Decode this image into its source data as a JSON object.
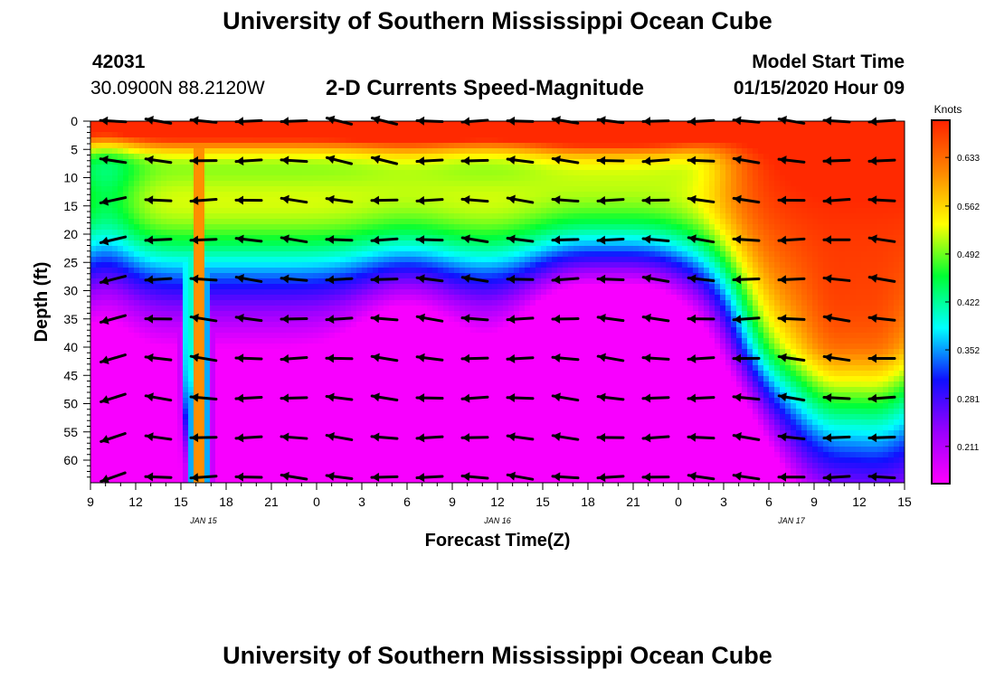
{
  "header": {
    "title_top": "University of Southern Mississippi Ocean Cube",
    "title_bottom": "University of Southern Mississippi Ocean Cube",
    "station_id": "42031",
    "station_coords": "30.0900N 88.2120W",
    "plot_title": "2-D Currents Speed-Magnitude",
    "model_start_label": "Model Start Time",
    "model_start_value": "01/15/2020 Hour 09"
  },
  "chart_data": {
    "type": "heatmap",
    "title": "2-D Currents Speed-Magnitude",
    "xlabel": "Forecast Time(Z)",
    "ylabel": "Depth (ft)",
    "x_tick_labels": [
      "9",
      "12",
      "15",
      "18",
      "21",
      "0",
      "3",
      "6",
      "9",
      "12",
      "15",
      "18",
      "21",
      "0",
      "3",
      "6",
      "9",
      "12",
      "15"
    ],
    "x_hours_from_start": [
      0,
      3,
      6,
      9,
      12,
      15,
      18,
      21,
      24,
      27,
      30,
      33,
      36,
      39,
      42,
      45,
      48,
      51,
      54
    ],
    "date_labels": [
      {
        "text": "JAN 15",
        "hour": 7.5
      },
      {
        "text": "JAN 16",
        "hour": 27
      },
      {
        "text": "JAN 17",
        "hour": 46.5
      }
    ],
    "y_ticks": [
      0,
      5,
      10,
      15,
      20,
      25,
      30,
      35,
      40,
      45,
      50,
      55,
      60
    ],
    "ylim": [
      0,
      64
    ],
    "y_inverted": true,
    "colorbar": {
      "label": "Knots",
      "ticks": [
        "0.211",
        "0.281",
        "0.352",
        "0.422",
        "0.492",
        "0.562",
        "0.633"
      ],
      "tick_values": [
        0.211,
        0.281,
        0.352,
        0.422,
        0.492,
        0.562,
        0.633
      ],
      "range": [
        0.158,
        0.686
      ],
      "colors": [
        "#ff00ff",
        "#9a00ff",
        "#1010ff",
        "#00ffff",
        "#00ff33",
        "#ffff00",
        "#ff8800",
        "#ff2200"
      ]
    },
    "vector_depths": [
      0,
      7,
      14,
      21,
      28,
      35,
      42,
      49,
      56,
      63
    ],
    "vector_times": [
      1.5,
      4.5,
      7.5,
      10.5,
      13.5,
      16.5,
      19.5,
      22.5,
      25.5,
      28.5,
      31.5,
      34.5,
      37.5,
      40.5,
      43.5,
      46.5,
      49.5,
      52.5
    ],
    "arrow_color": "#000000"
  }
}
